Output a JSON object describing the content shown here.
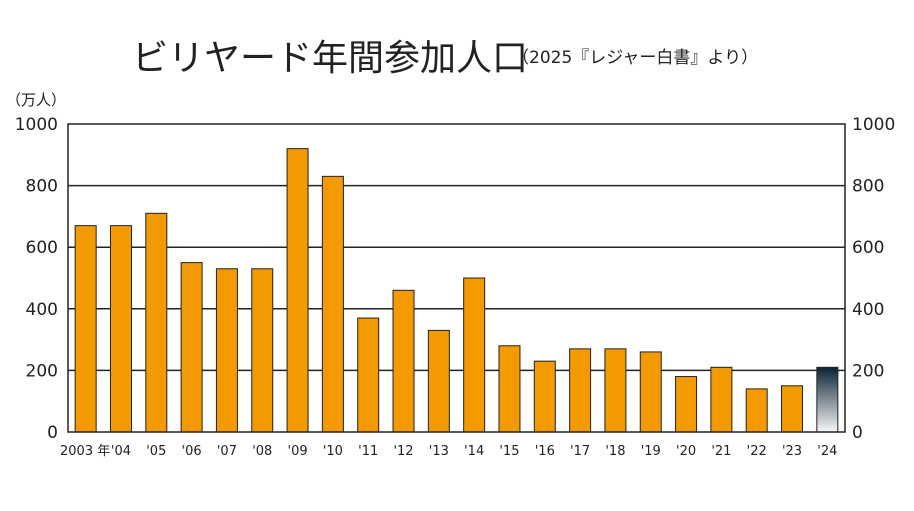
{
  "chart_data": {
    "type": "bar",
    "title": "ビリヤード年間参加人口",
    "subtitle": "（2025『レジャー白書』より）",
    "ylabel": "（万人）",
    "xlabel": "",
    "ylim": [
      0,
      1000
    ],
    "yticks": [
      0,
      200,
      400,
      600,
      800,
      1000
    ],
    "grid": true,
    "legend": "none",
    "categories": [
      "2003 年",
      "'04",
      "'05",
      "'06",
      "'07",
      "'08",
      "'09",
      "'10",
      "'11",
      "'12",
      "'13",
      "'14",
      "'15",
      "'16",
      "'17",
      "'18",
      "'19",
      "'20",
      "'21",
      "'22",
      "'23",
      "'24"
    ],
    "values": [
      670,
      670,
      710,
      550,
      530,
      530,
      920,
      830,
      370,
      460,
      330,
      500,
      280,
      230,
      270,
      270,
      260,
      180,
      210,
      140,
      150,
      210
    ],
    "bar_color": "#f39a00",
    "highlight_index": 21,
    "highlight_colors": [
      "#0b2335",
      "#f5f7f8"
    ]
  }
}
